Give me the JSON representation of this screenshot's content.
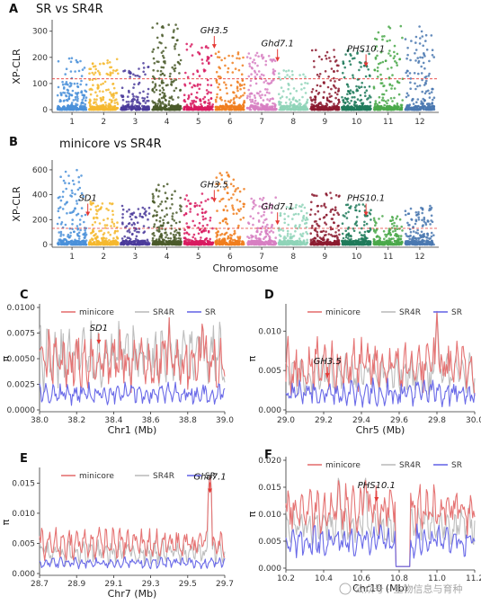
{
  "chart_data": [
    {
      "id": "A",
      "panel_label": "A",
      "title": "SR vs SR4R",
      "type": "scatter",
      "subtype": "manhattan",
      "ylabel": "XP-CLR",
      "xlabel": "",
      "ylim": [
        0,
        330
      ],
      "yticks": [
        0,
        100,
        200,
        300
      ],
      "threshold": 118,
      "chromosomes": [
        "1",
        "2",
        "3",
        "4",
        "5",
        "6",
        "7",
        "8",
        "9",
        "10",
        "11",
        "12"
      ],
      "chrom_colors": [
        "#4a90d9",
        "#f5b82e",
        "#4a3a9a",
        "#4a5a2a",
        "#d81b60",
        "#f07e1e",
        "#d77fc2",
        "#8fd4b8",
        "#8b1a2f",
        "#1f7a5a",
        "#4aa84a",
        "#4a78b0"
      ],
      "chrom_density": [
        1.0,
        1.0,
        0.7,
        1.2,
        0.9,
        0.9,
        0.9,
        0.8,
        1.0,
        1.1,
        0.9,
        1.0
      ],
      "chrom_peak": [
        200,
        200,
        180,
        330,
        260,
        230,
        220,
        160,
        230,
        230,
        320,
        320
      ],
      "annotations": [
        {
          "label": "GH3.5",
          "x": 5.5,
          "y": 230
        },
        {
          "label": "Ghd7.1",
          "x": 7.5,
          "y": 180
        },
        {
          "label": "PHS10.1",
          "x": 10.3,
          "y": 160
        }
      ]
    },
    {
      "id": "B",
      "panel_label": "B",
      "title": "minicore vs SR4R",
      "type": "scatter",
      "subtype": "manhattan",
      "ylabel": "XP-CLR",
      "xlabel": "Chromosome",
      "ylim": [
        0,
        650
      ],
      "yticks": [
        0,
        200,
        400,
        600
      ],
      "threshold": 130,
      "chromosomes": [
        "1",
        "2",
        "3",
        "4",
        "5",
        "6",
        "7",
        "8",
        "9",
        "10",
        "11",
        "12"
      ],
      "chrom_colors": [
        "#4a90d9",
        "#f5b82e",
        "#4a3a9a",
        "#4a5a2a",
        "#d81b60",
        "#f07e1e",
        "#d77fc2",
        "#8fd4b8",
        "#8b1a2f",
        "#1f7a5a",
        "#4aa84a",
        "#4a78b0"
      ],
      "chrom_density": [
        1.0,
        1.0,
        0.7,
        1.2,
        0.9,
        0.9,
        0.9,
        0.8,
        1.0,
        1.1,
        0.9,
        1.0
      ],
      "chrom_peak": [
        620,
        350,
        320,
        500,
        430,
        600,
        380,
        320,
        420,
        330,
        230,
        310
      ],
      "annotations": [
        {
          "label": "SD1",
          "x": 1.5,
          "y": 220
        },
        {
          "label": "GH3.5",
          "x": 5.5,
          "y": 330
        },
        {
          "label": "Ghd7.1",
          "x": 7.5,
          "y": 150
        },
        {
          "label": "PHS10.1",
          "x": 10.3,
          "y": 220
        }
      ]
    },
    {
      "id": "C",
      "panel_label": "C",
      "type": "line",
      "ylabel": "π",
      "xlabel": "Chr1 (Mb)",
      "xlim": [
        38.0,
        39.0
      ],
      "xticks": [
        38.0,
        38.2,
        38.4,
        38.6,
        38.8,
        39.0
      ],
      "xtick_labels": [
        "38.0",
        "38.2",
        "38.4",
        "38.6",
        "38.8",
        "39.0"
      ],
      "ylim": [
        0,
        0.01
      ],
      "yticks": [
        0,
        0.0025,
        0.005,
        0.0075,
        0.01
      ],
      "ytick_labels": [
        "0.0000",
        "0.0025",
        "0.0050",
        "0.0075",
        "0.0100"
      ],
      "series": [
        {
          "name": "minicore",
          "color": "#e57373",
          "base": 0.0048,
          "amp": 0.0025
        },
        {
          "name": "SR4R",
          "color": "#bdbdbd",
          "base": 0.0052,
          "amp": 0.0028
        },
        {
          "name": "SR",
          "color": "#6a6ae8",
          "base": 0.0016,
          "amp": 0.0009
        }
      ],
      "spikes": [
        [
          38.88,
          0.0095
        ],
        [
          38.7,
          0.009
        ]
      ],
      "annotation": {
        "label": "SD1",
        "x": 38.32,
        "y": 0.0065
      }
    },
    {
      "id": "D",
      "panel_label": "D",
      "type": "line",
      "ylabel": "π",
      "xlabel": "Chr5 (Mb)",
      "xlim": [
        29.0,
        30.0
      ],
      "xticks": [
        29.0,
        29.2,
        29.4,
        29.6,
        29.8,
        30.0
      ],
      "xtick_labels": [
        "29.0",
        "29.2",
        "29.4",
        "29.6",
        "29.8",
        "30.0"
      ],
      "ylim": [
        0,
        0.013
      ],
      "yticks": [
        0,
        0.005,
        0.01
      ],
      "ytick_labels": [
        "0.000",
        "0.005",
        "0.010"
      ],
      "series": [
        {
          "name": "minicore",
          "color": "#e57373",
          "base": 0.0055,
          "amp": 0.003
        },
        {
          "name": "SR4R",
          "color": "#bdbdbd",
          "base": 0.0045,
          "amp": 0.0022
        },
        {
          "name": "SR",
          "color": "#6a6ae8",
          "base": 0.0022,
          "amp": 0.0015
        }
      ],
      "spikes": [
        [
          29.8,
          0.0125
        ]
      ],
      "annotation": {
        "label": "GH3.5",
        "x": 29.22,
        "y": 0.0042
      }
    },
    {
      "id": "E",
      "panel_label": "E",
      "type": "line",
      "ylabel": "π",
      "xlabel": "Chr7 (Mb)",
      "xlim": [
        28.7,
        29.7
      ],
      "xticks": [
        28.7,
        28.9,
        29.1,
        29.3,
        29.5,
        29.7
      ],
      "xtick_labels": [
        "28.7",
        "28.9",
        "29.1",
        "29.3",
        "29.5",
        "29.7"
      ],
      "ylim": [
        0,
        0.017
      ],
      "yticks": [
        0,
        0.005,
        0.01,
        0.015
      ],
      "ytick_labels": [
        "0.000",
        "0.005",
        "0.010",
        "0.015"
      ],
      "series": [
        {
          "name": "minicore",
          "color": "#e57373",
          "base": 0.005,
          "amp": 0.0022
        },
        {
          "name": "SR4R",
          "color": "#bdbdbd",
          "base": 0.0035,
          "amp": 0.0018
        },
        {
          "name": "SR",
          "color": "#6a6ae8",
          "base": 0.0018,
          "amp": 0.0008
        }
      ],
      "spikes": [
        [
          29.62,
          0.017
        ]
      ],
      "annotation": {
        "label": "Ghd7.1",
        "x": 29.62,
        "y": 0.0135
      }
    },
    {
      "id": "F",
      "panel_label": "F",
      "type": "line",
      "ylabel": "π",
      "xlabel": "Chr10 (Mb)",
      "xlim": [
        10.2,
        11.2
      ],
      "xticks": [
        10.2,
        10.4,
        10.6,
        10.8,
        11.0,
        11.2
      ],
      "xtick_labels": [
        "10.2",
        "10.4",
        "10.6",
        "10.8",
        "11.0",
        "11.2"
      ],
      "ylim": [
        0,
        0.02
      ],
      "yticks": [
        0,
        0.005,
        0.01,
        0.015,
        0.02
      ],
      "ytick_labels": [
        "0.000",
        "0.005",
        "0.010",
        "0.015",
        "0.020"
      ],
      "series": [
        {
          "name": "minicore",
          "color": "#e57373",
          "base": 0.011,
          "amp": 0.004
        },
        {
          "name": "SR4R",
          "color": "#bdbdbd",
          "base": 0.008,
          "amp": 0.003
        },
        {
          "name": "SR",
          "color": "#6a6ae8",
          "base": 0.005,
          "amp": 0.0025
        }
      ],
      "dip": [
        10.78,
        10.86
      ],
      "spikes": [
        [
          10.62,
          0.018
        ],
        [
          10.48,
          0.018
        ]
      ],
      "annotation": {
        "label": "PHS10.1",
        "x": 10.68,
        "y": 0.0125
      }
    }
  ],
  "watermark": "公众号 · 生物信息与育种"
}
